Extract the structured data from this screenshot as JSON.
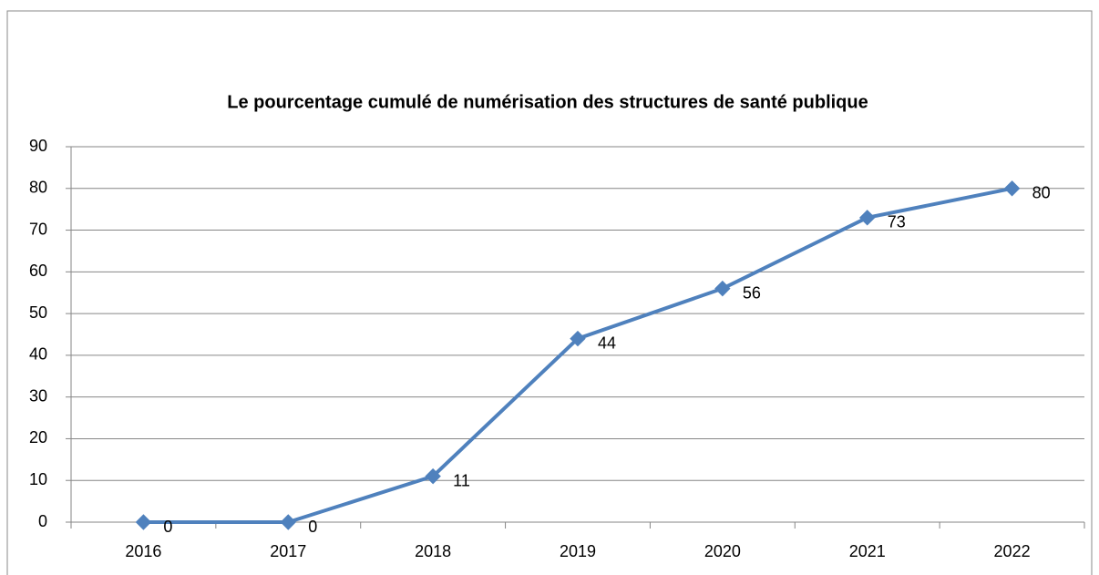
{
  "chart_data": {
    "type": "line",
    "title": "Le pourcentage cumulé de numérisation des structures de santé publique",
    "categories": [
      "2016",
      "2017",
      "2018",
      "2019",
      "2020",
      "2021",
      "2022"
    ],
    "values": [
      0,
      0,
      11,
      44,
      56,
      73,
      80
    ],
    "color": "#4f81bd",
    "ylim": [
      0,
      90
    ],
    "yticks": [
      0,
      10,
      20,
      30,
      40,
      50,
      60,
      70,
      80,
      90
    ],
    "grid": true,
    "data_labels": true
  }
}
